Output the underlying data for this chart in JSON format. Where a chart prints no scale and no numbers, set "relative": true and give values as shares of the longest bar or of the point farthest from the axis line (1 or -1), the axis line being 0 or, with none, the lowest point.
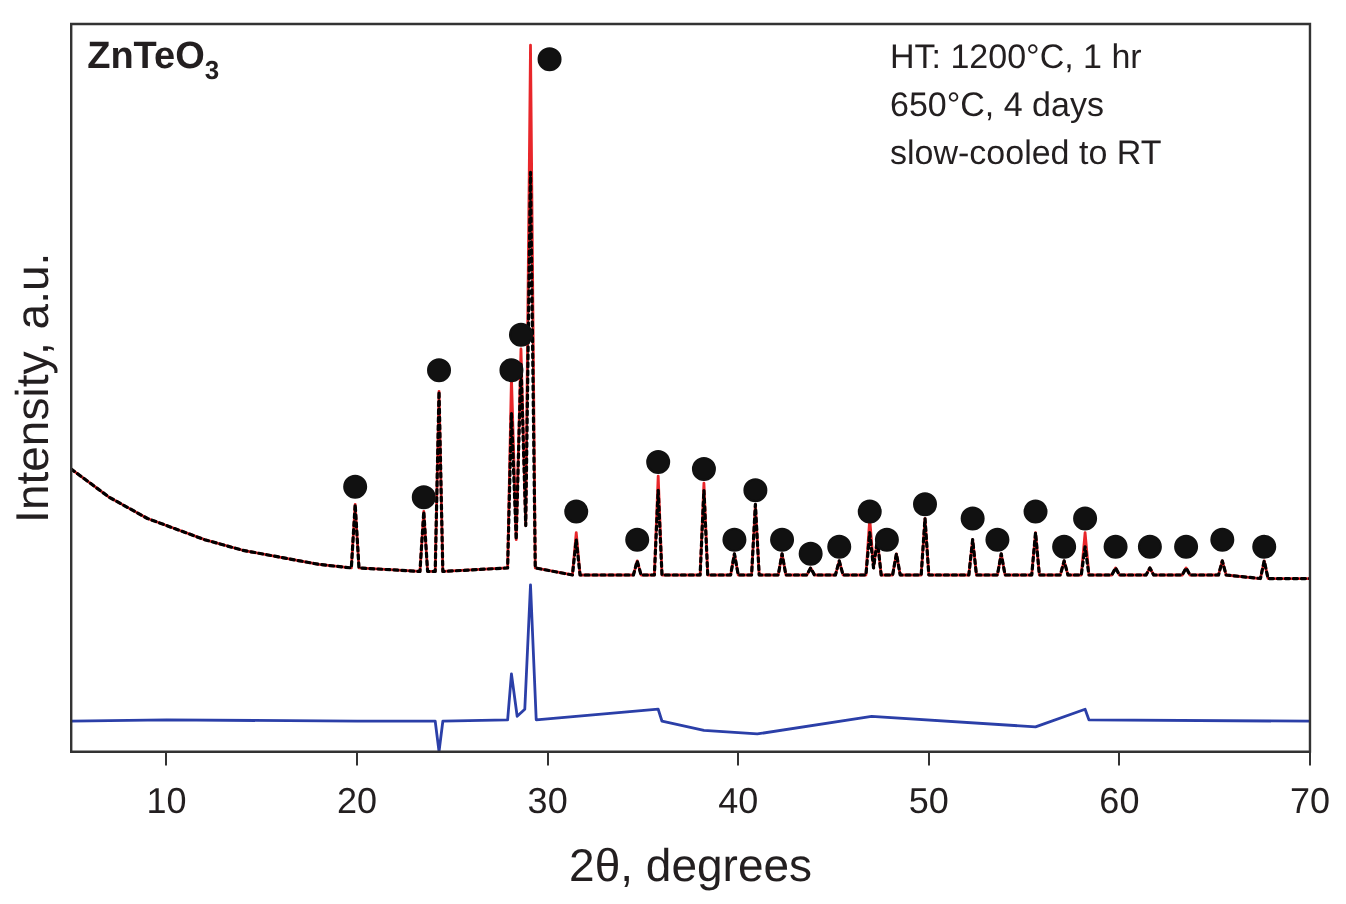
{
  "chart_data": {
    "type": "line",
    "title": "ZnTeO$_{3}$",
    "xlabel": "2θ, degrees",
    "ylabel": "Intensity, a.u.",
    "relative": true,
    "xlim": [
      5,
      70
    ],
    "xticks": [
      10,
      20,
      30,
      40,
      50,
      60,
      70
    ],
    "grid": false,
    "legend": false,
    "annotations": [
      "HT: 1200°C, 1 hr",
      "650°C, 4 days",
      "slow-cooled to RT"
    ],
    "series": [
      {
        "type": "line",
        "color": "#e8262a",
        "line_style": "solid",
        "x": [
          5,
          6,
          7,
          8,
          9,
          10,
          12,
          14,
          16,
          18,
          19.7,
          19.9,
          20.1,
          23.3,
          23.5,
          23.7,
          24.1,
          24.3,
          24.5,
          27.9,
          28.1,
          28.35,
          28.6,
          28.85,
          29.1,
          29.35,
          31.3,
          31.5,
          31.7,
          34.5,
          34.7,
          34.9,
          35.6,
          35.8,
          36.0,
          38.0,
          38.2,
          38.4,
          39.6,
          39.8,
          40.0,
          40.7,
          40.9,
          41.1,
          42.1,
          42.3,
          42.5,
          43.6,
          43.8,
          44.0,
          45.1,
          45.3,
          45.5,
          46.7,
          46.9,
          47.1,
          47.3,
          47.5,
          48.1,
          48.3,
          48.5,
          49.6,
          49.8,
          50.0,
          52.1,
          52.3,
          52.5,
          53.6,
          53.8,
          54.0,
          55.4,
          55.6,
          55.8,
          56.9,
          57.1,
          57.3,
          58.0,
          58.2,
          58.4,
          59.6,
          59.8,
          60.0,
          61.4,
          61.6,
          61.8,
          63.3,
          63.5,
          63.7,
          65.2,
          65.4,
          65.6,
          67.4,
          67.6,
          67.8,
          70
        ],
        "values": [
          0.4,
          0.38,
          0.36,
          0.345,
          0.33,
          0.32,
          0.3,
          0.285,
          0.275,
          0.265,
          0.26,
          0.35,
          0.26,
          0.255,
          0.34,
          0.255,
          0.255,
          0.51,
          0.255,
          0.26,
          0.53,
          0.3,
          0.57,
          0.32,
          1,
          0.26,
          0.25,
          0.31,
          0.25,
          0.25,
          0.27,
          0.25,
          0.25,
          0.39,
          0.25,
          0.25,
          0.38,
          0.25,
          0.25,
          0.28,
          0.25,
          0.25,
          0.35,
          0.25,
          0.25,
          0.28,
          0.25,
          0.25,
          0.26,
          0.25,
          0.25,
          0.27,
          0.25,
          0.25,
          0.33,
          0.26,
          0.3,
          0.25,
          0.25,
          0.28,
          0.25,
          0.25,
          0.33,
          0.25,
          0.25,
          0.3,
          0.25,
          0.25,
          0.28,
          0.25,
          0.25,
          0.31,
          0.25,
          0.25,
          0.27,
          0.25,
          0.25,
          0.31,
          0.25,
          0.25,
          0.26,
          0.25,
          0.25,
          0.26,
          0.25,
          0.25,
          0.26,
          0.25,
          0.25,
          0.27,
          0.25,
          0.245,
          0.27,
          0.245,
          0.245
        ]
      },
      {
        "type": "line",
        "color": "#000000",
        "line_style": "dotted",
        "x": [
          5,
          6,
          7,
          8,
          9,
          10,
          12,
          14,
          16,
          18,
          19.7,
          19.9,
          20.1,
          23.3,
          23.5,
          23.7,
          24.1,
          24.3,
          24.5,
          27.9,
          28.1,
          28.35,
          28.6,
          28.85,
          29.1,
          29.35,
          31.3,
          31.5,
          31.7,
          34.5,
          34.7,
          34.9,
          35.6,
          35.8,
          36.0,
          38.0,
          38.2,
          38.4,
          39.6,
          39.8,
          40.0,
          40.7,
          40.9,
          41.1,
          42.1,
          42.3,
          42.5,
          43.6,
          43.8,
          44.0,
          45.1,
          45.3,
          45.5,
          46.7,
          46.9,
          47.1,
          47.3,
          47.5,
          48.1,
          48.3,
          48.5,
          49.6,
          49.8,
          50.0,
          52.1,
          52.3,
          52.5,
          53.6,
          53.8,
          54.0,
          55.4,
          55.6,
          55.8,
          56.9,
          57.1,
          57.3,
          58.0,
          58.2,
          58.4,
          59.6,
          59.8,
          60.0,
          61.4,
          61.6,
          61.8,
          63.3,
          63.5,
          63.7,
          65.2,
          65.4,
          65.6,
          67.4,
          67.6,
          67.8,
          70
        ],
        "values": [
          0.4,
          0.38,
          0.36,
          0.345,
          0.33,
          0.32,
          0.3,
          0.285,
          0.275,
          0.265,
          0.26,
          0.35,
          0.26,
          0.255,
          0.34,
          0.255,
          0.255,
          0.51,
          0.255,
          0.26,
          0.48,
          0.3,
          0.55,
          0.32,
          0.82,
          0.26,
          0.25,
          0.3,
          0.25,
          0.25,
          0.27,
          0.25,
          0.25,
          0.37,
          0.25,
          0.25,
          0.37,
          0.25,
          0.25,
          0.28,
          0.25,
          0.25,
          0.35,
          0.25,
          0.25,
          0.28,
          0.25,
          0.25,
          0.26,
          0.25,
          0.25,
          0.27,
          0.25,
          0.25,
          0.31,
          0.26,
          0.3,
          0.25,
          0.25,
          0.28,
          0.25,
          0.25,
          0.33,
          0.25,
          0.25,
          0.3,
          0.25,
          0.25,
          0.28,
          0.25,
          0.25,
          0.31,
          0.25,
          0.25,
          0.27,
          0.25,
          0.25,
          0.29,
          0.25,
          0.25,
          0.26,
          0.25,
          0.25,
          0.26,
          0.25,
          0.25,
          0.26,
          0.25,
          0.25,
          0.27,
          0.25,
          0.245,
          0.27,
          0.245,
          0.245
        ]
      },
      {
        "type": "line",
        "color": "#2b3fa8",
        "line_style": "solid",
        "x": [
          5,
          10,
          20,
          24.1,
          24.3,
          24.5,
          27.9,
          28.1,
          28.4,
          28.8,
          29.1,
          29.4,
          35.8,
          36,
          38.2,
          41,
          47,
          55.6,
          58.2,
          58.4,
          70
        ],
        "values": [
          0.043,
          0.045,
          0.043,
          0.043,
          0.0,
          0.043,
          0.045,
          0.11,
          0.05,
          0.06,
          0.236,
          0.045,
          0.06,
          0.043,
          0.03,
          0.025,
          0.05,
          0.035,
          0.06,
          0.045,
          0.043
        ]
      },
      {
        "type": "scatter",
        "color": "#111111",
        "marker": "circle",
        "x": [
          19.9,
          23.5,
          24.3,
          28.1,
          28.6,
          30.1,
          31.5,
          34.7,
          35.8,
          38.2,
          39.8,
          40.9,
          42.3,
          43.8,
          45.3,
          46.9,
          47.8,
          49.8,
          52.3,
          53.6,
          55.6,
          57.1,
          58.2,
          59.8,
          61.6,
          63.5,
          65.4,
          67.6
        ],
        "values": [
          0.375,
          0.36,
          0.54,
          0.54,
          0.59,
          0.98,
          0.34,
          0.3,
          0.41,
          0.4,
          0.3,
          0.37,
          0.3,
          0.28,
          0.29,
          0.34,
          0.3,
          0.35,
          0.33,
          0.3,
          0.34,
          0.29,
          0.33,
          0.29,
          0.29,
          0.29,
          0.3,
          0.29
        ]
      }
    ]
  }
}
